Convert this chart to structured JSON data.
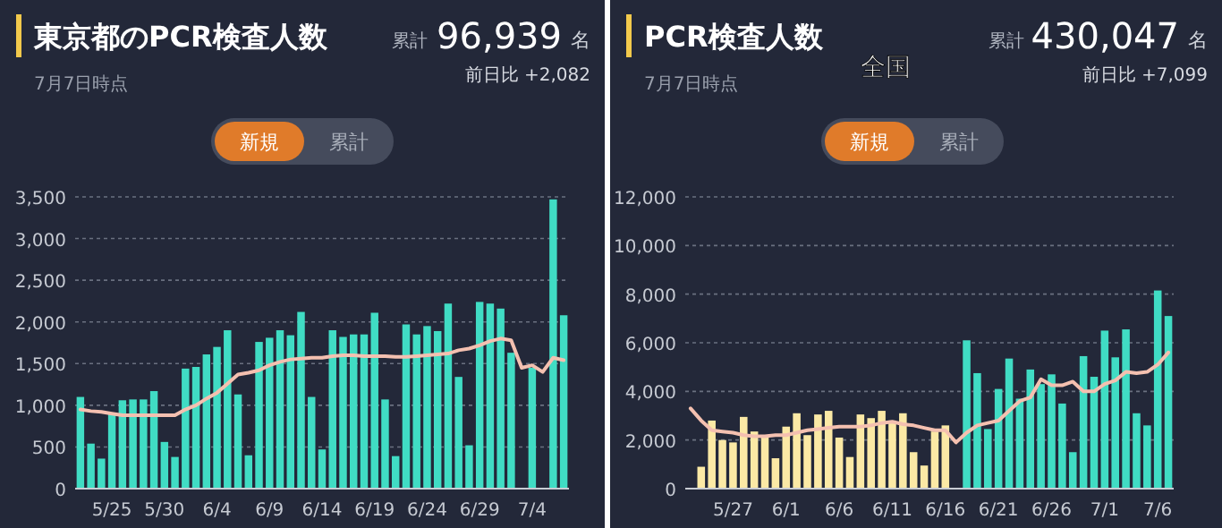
{
  "chart_data": [
    {
      "type": "bar",
      "title": "東京都のPCR検査人数",
      "subtitle": "7月7日時点",
      "annotations": [
        "累計",
        "96,939",
        "名",
        "前日比 +2,082",
        "新規",
        "累計"
      ],
      "categories": [
        null,
        null,
        null,
        "5/25",
        null,
        null,
        null,
        null,
        "5/30",
        null,
        null,
        null,
        null,
        "6/4",
        null,
        null,
        null,
        null,
        "6/9",
        null,
        null,
        null,
        null,
        "6/14",
        null,
        null,
        null,
        null,
        "6/19",
        null,
        null,
        null,
        null,
        "6/24",
        null,
        null,
        null,
        null,
        "6/29",
        null,
        null,
        null,
        null,
        "7/4",
        null,
        null,
        null
      ],
      "series": [
        {
          "type": "bar",
          "color": "#40dcc4",
          "values": [
            1100,
            540,
            360,
            900,
            1060,
            1070,
            1070,
            1170,
            560,
            380,
            1440,
            1460,
            1610,
            1700,
            1900,
            1130,
            400,
            1760,
            1810,
            1900,
            1840,
            2120,
            1100,
            470,
            1900,
            1820,
            1850,
            1850,
            2110,
            1070,
            390,
            1970,
            1850,
            1950,
            1890,
            2220,
            1340,
            520,
            2240,
            2220,
            2160,
            1630,
            null,
            1450,
            null,
            3470,
            2080
          ]
        },
        {
          "type": "line",
          "color": "#f4c0b0",
          "values": [
            950,
            930,
            920,
            900,
            880,
            880,
            880,
            880,
            880,
            880,
            950,
            1000,
            1080,
            1150,
            1260,
            1370,
            1390,
            1420,
            1480,
            1520,
            1550,
            1560,
            1570,
            1570,
            1590,
            1600,
            1600,
            1590,
            1590,
            1590,
            1580,
            1580,
            1590,
            1600,
            1610,
            1620,
            1660,
            1680,
            1720,
            1770,
            1800,
            1780,
            1450,
            1480,
            1400,
            1570,
            1540
          ]
        }
      ],
      "ylim": [
        0,
        3500
      ],
      "yticks": [
        0,
        {
          "value": 500,
          "label": "500"
        },
        {
          "value": 1000,
          "label": "1,000"
        },
        {
          "value": 1500,
          "label": "1,500"
        },
        {
          "value": 2000,
          "label": "2,000"
        },
        {
          "value": 2500,
          "label": "2,500"
        },
        {
          "value": 3000,
          "label": "3,000"
        },
        {
          "value": 3500,
          "label": "3,500"
        }
      ],
      "grid": "y"
    },
    {
      "type": "bar",
      "title": "PCR検査人数",
      "subtitle": "7月7日時点",
      "annotations": [
        "累計",
        "430,047",
        "名",
        "前日比 +7,099",
        "新規",
        "累計",
        "全国"
      ],
      "categories": [
        null,
        null,
        null,
        null,
        "5/27",
        null,
        null,
        null,
        null,
        "6/1",
        null,
        null,
        null,
        null,
        "6/6",
        null,
        null,
        null,
        null,
        "6/11",
        null,
        null,
        null,
        null,
        "6/16",
        null,
        null,
        null,
        null,
        "6/21",
        null,
        null,
        null,
        null,
        "6/26",
        null,
        null,
        null,
        null,
        "7/1",
        null,
        null,
        null,
        null,
        "7/6",
        null
      ],
      "series": [
        {
          "type": "bar",
          "colors": [
            "#fbe9a5",
            "#fbe9a5",
            "#fbe9a5",
            "#fbe9a5",
            "#fbe9a5",
            "#fbe9a5",
            "#fbe9a5",
            "#fbe9a5",
            "#fbe9a5",
            "#fbe9a5",
            "#fbe9a5",
            "#fbe9a5",
            "#fbe9a5",
            "#fbe9a5",
            "#fbe9a5",
            "#fbe9a5",
            "#fbe9a5",
            "#fbe9a5",
            "#fbe9a5",
            "#fbe9a5",
            "#fbe9a5",
            "#fbe9a5",
            "#fbe9a5",
            "#fbe9a5",
            "#fbe9a5",
            "#40dcc4",
            "#40dcc4",
            "#40dcc4",
            "#40dcc4",
            "#40dcc4",
            "#40dcc4",
            "#40dcc4",
            "#40dcc4",
            "#40dcc4",
            "#40dcc4",
            "#40dcc4",
            "#40dcc4",
            "#40dcc4",
            "#40dcc4",
            "#40dcc4",
            "#40dcc4",
            "#40dcc4",
            "#40dcc4",
            "#40dcc4",
            "#40dcc4",
            "#40dcc4"
          ],
          "values": [
            null,
            900,
            2800,
            2000,
            1900,
            2950,
            2350,
            2150,
            1250,
            2550,
            3100,
            2200,
            3050,
            3200,
            2100,
            1300,
            3050,
            2900,
            3200,
            2800,
            3100,
            1500,
            950,
            2350,
            2600,
            null,
            6100,
            4750,
            2450,
            4100,
            5350,
            3700,
            4900,
            4300,
            4700,
            3500,
            1500,
            5450,
            4600,
            6500,
            5400,
            6550,
            3100,
            2600,
            8150,
            7100
          ]
        },
        {
          "type": "line",
          "color": "#f4c0b0",
          "values": [
            3300,
            2800,
            2400,
            2350,
            2300,
            2200,
            2150,
            2150,
            2200,
            2200,
            2300,
            2400,
            2450,
            2500,
            2550,
            2550,
            2550,
            2600,
            2700,
            2750,
            2650,
            2600,
            2500,
            2400,
            2400,
            1900,
            2300,
            2600,
            2700,
            2800,
            3200,
            3600,
            3750,
            4500,
            4250,
            4250,
            4400,
            4000,
            4000,
            4300,
            4450,
            4800,
            4750,
            4800,
            5100,
            5600
          ]
        }
      ],
      "ylim": [
        0,
        12000
      ],
      "yticks": [
        0,
        {
          "value": 2000,
          "label": "2,000"
        },
        {
          "value": 4000,
          "label": "4,000"
        },
        {
          "value": 6000,
          "label": "6,000"
        },
        {
          "value": 8000,
          "label": "8,000"
        },
        {
          "value": 10000,
          "label": "10,000"
        },
        {
          "value": 12000,
          "label": "12,000"
        }
      ],
      "grid": "y"
    }
  ]
}
